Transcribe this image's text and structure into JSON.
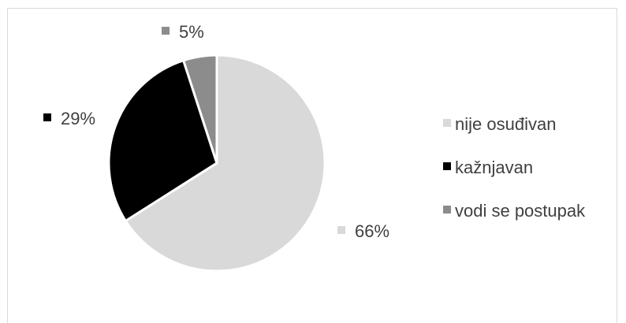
{
  "chart_data": {
    "type": "pie",
    "title": "",
    "categories": [
      "nije osuđivan",
      "kažnjavan",
      "vodi se postupak"
    ],
    "values": [
      66,
      29,
      5
    ],
    "value_labels": [
      "66%",
      "29%",
      "5%"
    ],
    "colors": [
      "#d9d9d9",
      "#000000",
      "#8c8c8c"
    ],
    "legend": "right",
    "start_angle_deg": 0,
    "direction": "clockwise"
  }
}
